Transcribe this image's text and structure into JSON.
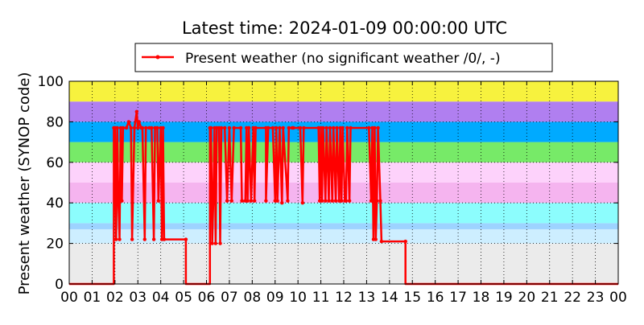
{
  "chart_data": {
    "type": "line",
    "title": "Latest time: 2024-01-09 00:00:00 UTC",
    "xlabel": "",
    "ylabel": "Present weather (SYNOP code)",
    "xlim": [
      0,
      24
    ],
    "ylim": [
      0,
      100
    ],
    "x_ticks": [
      "00",
      "01",
      "02",
      "03",
      "04",
      "05",
      "06",
      "07",
      "08",
      "09",
      "10",
      "11",
      "12",
      "13",
      "14",
      "15",
      "16",
      "17",
      "18",
      "19",
      "20",
      "21",
      "22",
      "23",
      "00"
    ],
    "y_ticks": [
      0,
      20,
      40,
      60,
      80,
      100
    ],
    "grid": true,
    "legend_position": "top-center",
    "bands": [
      {
        "from": 0,
        "to": 20,
        "color": "#ebebeb"
      },
      {
        "from": 20,
        "to": 27,
        "color": "#cdeeff"
      },
      {
        "from": 27,
        "to": 30,
        "color": "#9dd3ff"
      },
      {
        "from": 30,
        "to": 40,
        "color": "#8cfdfd"
      },
      {
        "from": 40,
        "to": 50,
        "color": "#f5b4ef"
      },
      {
        "from": 50,
        "to": 60,
        "color": "#fdd2fb"
      },
      {
        "from": 60,
        "to": 70,
        "color": "#77ea68"
      },
      {
        "from": 70,
        "to": 80,
        "color": "#00aaff"
      },
      {
        "from": 80,
        "to": 90,
        "color": "#b07ff0"
      },
      {
        "from": 90,
        "to": 100,
        "color": "#f7f23e"
      }
    ],
    "series": [
      {
        "name": "Present weather (no significant weather /0/, -)",
        "color": "#ff0000",
        "points": [
          [
            0.0,
            0
          ],
          [
            1.95,
            0
          ],
          [
            1.95,
            77
          ],
          [
            2.0,
            77
          ],
          [
            2.05,
            22
          ],
          [
            2.1,
            77
          ],
          [
            2.15,
            40
          ],
          [
            2.2,
            22
          ],
          [
            2.25,
            77
          ],
          [
            2.3,
            41
          ],
          [
            2.35,
            77
          ],
          [
            2.5,
            77
          ],
          [
            2.6,
            80
          ],
          [
            2.7,
            77
          ],
          [
            2.75,
            22
          ],
          [
            2.85,
            77
          ],
          [
            2.95,
            85
          ],
          [
            3.0,
            77
          ],
          [
            3.05,
            80
          ],
          [
            3.15,
            77
          ],
          [
            3.2,
            77
          ],
          [
            3.3,
            22
          ],
          [
            3.35,
            77
          ],
          [
            3.5,
            77
          ],
          [
            3.6,
            77
          ],
          [
            3.7,
            22
          ],
          [
            3.75,
            77
          ],
          [
            3.85,
            77
          ],
          [
            3.9,
            41
          ],
          [
            4.0,
            77
          ],
          [
            4.05,
            22
          ],
          [
            4.1,
            77
          ],
          [
            4.15,
            22
          ],
          [
            5.1,
            22
          ],
          [
            5.1,
            0
          ],
          [
            6.15,
            0
          ],
          [
            6.15,
            77
          ],
          [
            6.2,
            77
          ],
          [
            6.25,
            20
          ],
          [
            6.3,
            41
          ],
          [
            6.35,
            77
          ],
          [
            6.4,
            20
          ],
          [
            6.45,
            77
          ],
          [
            6.55,
            77
          ],
          [
            6.6,
            20
          ],
          [
            6.65,
            77
          ],
          [
            6.8,
            77
          ],
          [
            6.9,
            41
          ],
          [
            7.0,
            77
          ],
          [
            7.1,
            41
          ],
          [
            7.2,
            77
          ],
          [
            7.5,
            77
          ],
          [
            7.55,
            41
          ],
          [
            7.7,
            41
          ],
          [
            7.75,
            77
          ],
          [
            7.8,
            41
          ],
          [
            7.85,
            77
          ],
          [
            7.95,
            41
          ],
          [
            8.05,
            77
          ],
          [
            8.1,
            41
          ],
          [
            8.15,
            77
          ],
          [
            8.6,
            77
          ],
          [
            8.6,
            41
          ],
          [
            8.7,
            77
          ],
          [
            8.9,
            77
          ],
          [
            9.0,
            41
          ],
          [
            9.05,
            77
          ],
          [
            9.1,
            41
          ],
          [
            9.2,
            77
          ],
          [
            9.3,
            40
          ],
          [
            9.35,
            77
          ],
          [
            9.55,
            41
          ],
          [
            9.6,
            77
          ],
          [
            9.75,
            77
          ],
          [
            9.8,
            77
          ],
          [
            10.1,
            77
          ],
          [
            10.2,
            40
          ],
          [
            10.25,
            77
          ],
          [
            10.9,
            77
          ],
          [
            10.95,
            41
          ],
          [
            11.0,
            77
          ],
          [
            11.05,
            41
          ],
          [
            11.1,
            77
          ],
          [
            11.2,
            41
          ],
          [
            11.25,
            77
          ],
          [
            11.35,
            41
          ],
          [
            11.4,
            77
          ],
          [
            11.5,
            41
          ],
          [
            11.55,
            77
          ],
          [
            11.65,
            41
          ],
          [
            11.7,
            77
          ],
          [
            11.8,
            41
          ],
          [
            11.85,
            77
          ],
          [
            11.9,
            41
          ],
          [
            11.95,
            77
          ],
          [
            12.05,
            41
          ],
          [
            12.1,
            41
          ],
          [
            12.15,
            77
          ],
          [
            12.25,
            41
          ],
          [
            12.3,
            77
          ],
          [
            13.1,
            77
          ],
          [
            13.2,
            41
          ],
          [
            13.25,
            77
          ],
          [
            13.3,
            22
          ],
          [
            13.35,
            77
          ],
          [
            13.4,
            22
          ],
          [
            13.45,
            41
          ],
          [
            13.5,
            77
          ],
          [
            13.6,
            41
          ],
          [
            13.65,
            21
          ],
          [
            14.7,
            21
          ],
          [
            14.7,
            0
          ],
          [
            24.0,
            0
          ]
        ]
      }
    ]
  }
}
